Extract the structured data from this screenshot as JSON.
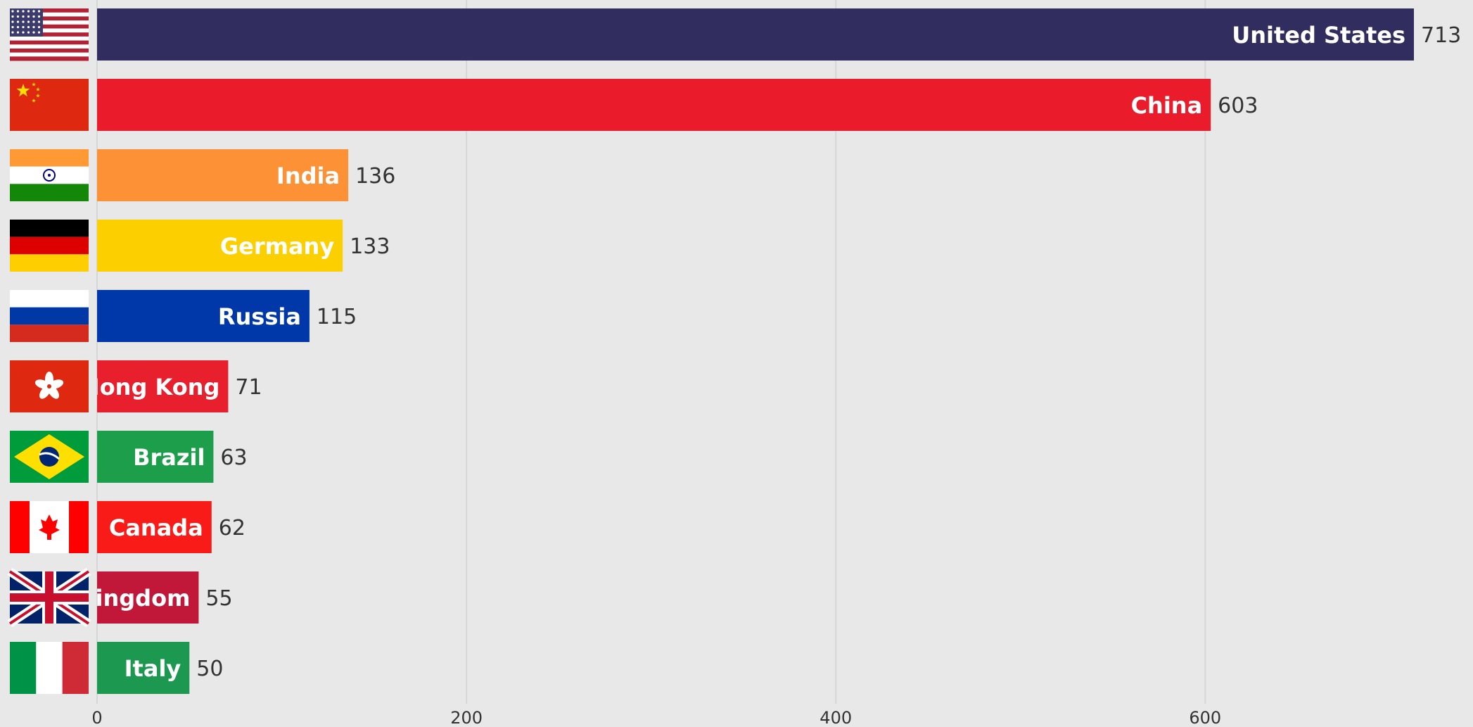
{
  "chart_data": {
    "type": "bar",
    "orientation": "horizontal",
    "title": "",
    "xlabel": "",
    "ylabel": "",
    "xlim": [
      0,
      725
    ],
    "grid": true,
    "legend": "none",
    "bar_labels_inside": true,
    "xticks": [
      0,
      200,
      400,
      600
    ],
    "categories": [
      "United States",
      "China",
      "India",
      "Germany",
      "Russia",
      "Hong Kong",
      "Brazil",
      "Canada",
      "United Kingdom",
      "Italy"
    ],
    "values": [
      713,
      603,
      136,
      133,
      115,
      71,
      63,
      62,
      55,
      50
    ],
    "colors": [
      "#312d5e",
      "#ea1b2a",
      "#fc9136",
      "#fcd000",
      "#0038aa",
      "#e8202e",
      "#1c9e4a",
      "#f81b17",
      "#c1183a",
      "#1d9850"
    ],
    "flags": [
      "us-flag-icon",
      "china-flag-icon",
      "india-flag-icon",
      "germany-flag-icon",
      "russia-flag-icon",
      "hong-kong-flag-icon",
      "brazil-flag-icon",
      "canada-flag-icon",
      "uk-flag-icon",
      "italy-flag-icon"
    ]
  }
}
